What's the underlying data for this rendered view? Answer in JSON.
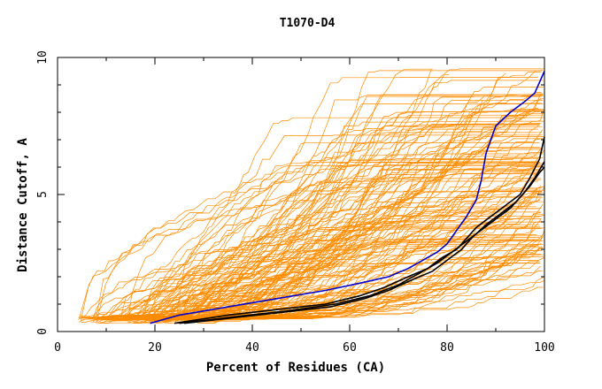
{
  "chart_data": {
    "type": "line",
    "title": "T1070-D4",
    "xlabel": "Percent of Residues (CA)",
    "ylabel": "Distance Cutoff, A",
    "xlim": [
      0,
      100
    ],
    "ylim": [
      0,
      10
    ],
    "x_ticks": [
      "0",
      "20",
      "40",
      "60",
      "80",
      "100"
    ],
    "y_ticks": [
      "0",
      "5",
      "10"
    ],
    "grid": false,
    "legend": "none",
    "colors": {
      "background_models": "#ff8c00",
      "highlight_black": "#000000",
      "highlight_blue": "#0000cc"
    },
    "background_series_count": 150,
    "series": [
      {
        "color": "#0000cc",
        "x": [
          19,
          25,
          35,
          45,
          55,
          63,
          68,
          72,
          75,
          78,
          80,
          82,
          84,
          86,
          87,
          88,
          90,
          93,
          96,
          98,
          100
        ],
        "y": [
          0.3,
          0.6,
          0.9,
          1.2,
          1.5,
          1.8,
          2.0,
          2.3,
          2.6,
          2.9,
          3.2,
          3.7,
          4.2,
          4.8,
          5.5,
          6.5,
          7.5,
          8.0,
          8.4,
          8.7,
          9.5
        ]
      },
      {
        "color": "#000000",
        "x": [
          24,
          35,
          45,
          55,
          62,
          67,
          72,
          76,
          79,
          82,
          84,
          86,
          89,
          92,
          95,
          97,
          99,
          100
        ],
        "y": [
          0.3,
          0.6,
          0.8,
          1.0,
          1.3,
          1.6,
          2.0,
          2.3,
          2.7,
          3.0,
          3.4,
          3.8,
          4.2,
          4.6,
          5.0,
          5.6,
          6.3,
          7.1
        ]
      },
      {
        "color": "#000000",
        "x": [
          26,
          36,
          46,
          56,
          63,
          68,
          73,
          77,
          80,
          83,
          85,
          88,
          91,
          94,
          96,
          98,
          100
        ],
        "y": [
          0.3,
          0.5,
          0.7,
          0.9,
          1.2,
          1.5,
          1.9,
          2.2,
          2.6,
          3.0,
          3.4,
          3.9,
          4.3,
          4.7,
          5.1,
          5.6,
          6.2
        ]
      },
      {
        "color": "#000000",
        "x": [
          25,
          37,
          47,
          57,
          64,
          70,
          74,
          78,
          81,
          84,
          87,
          90,
          93,
          95,
          97,
          99,
          100
        ],
        "y": [
          0.3,
          0.55,
          0.75,
          1.0,
          1.3,
          1.7,
          2.1,
          2.5,
          2.9,
          3.3,
          3.7,
          4.1,
          4.5,
          4.9,
          5.3,
          5.8,
          6.0
        ]
      }
    ]
  }
}
